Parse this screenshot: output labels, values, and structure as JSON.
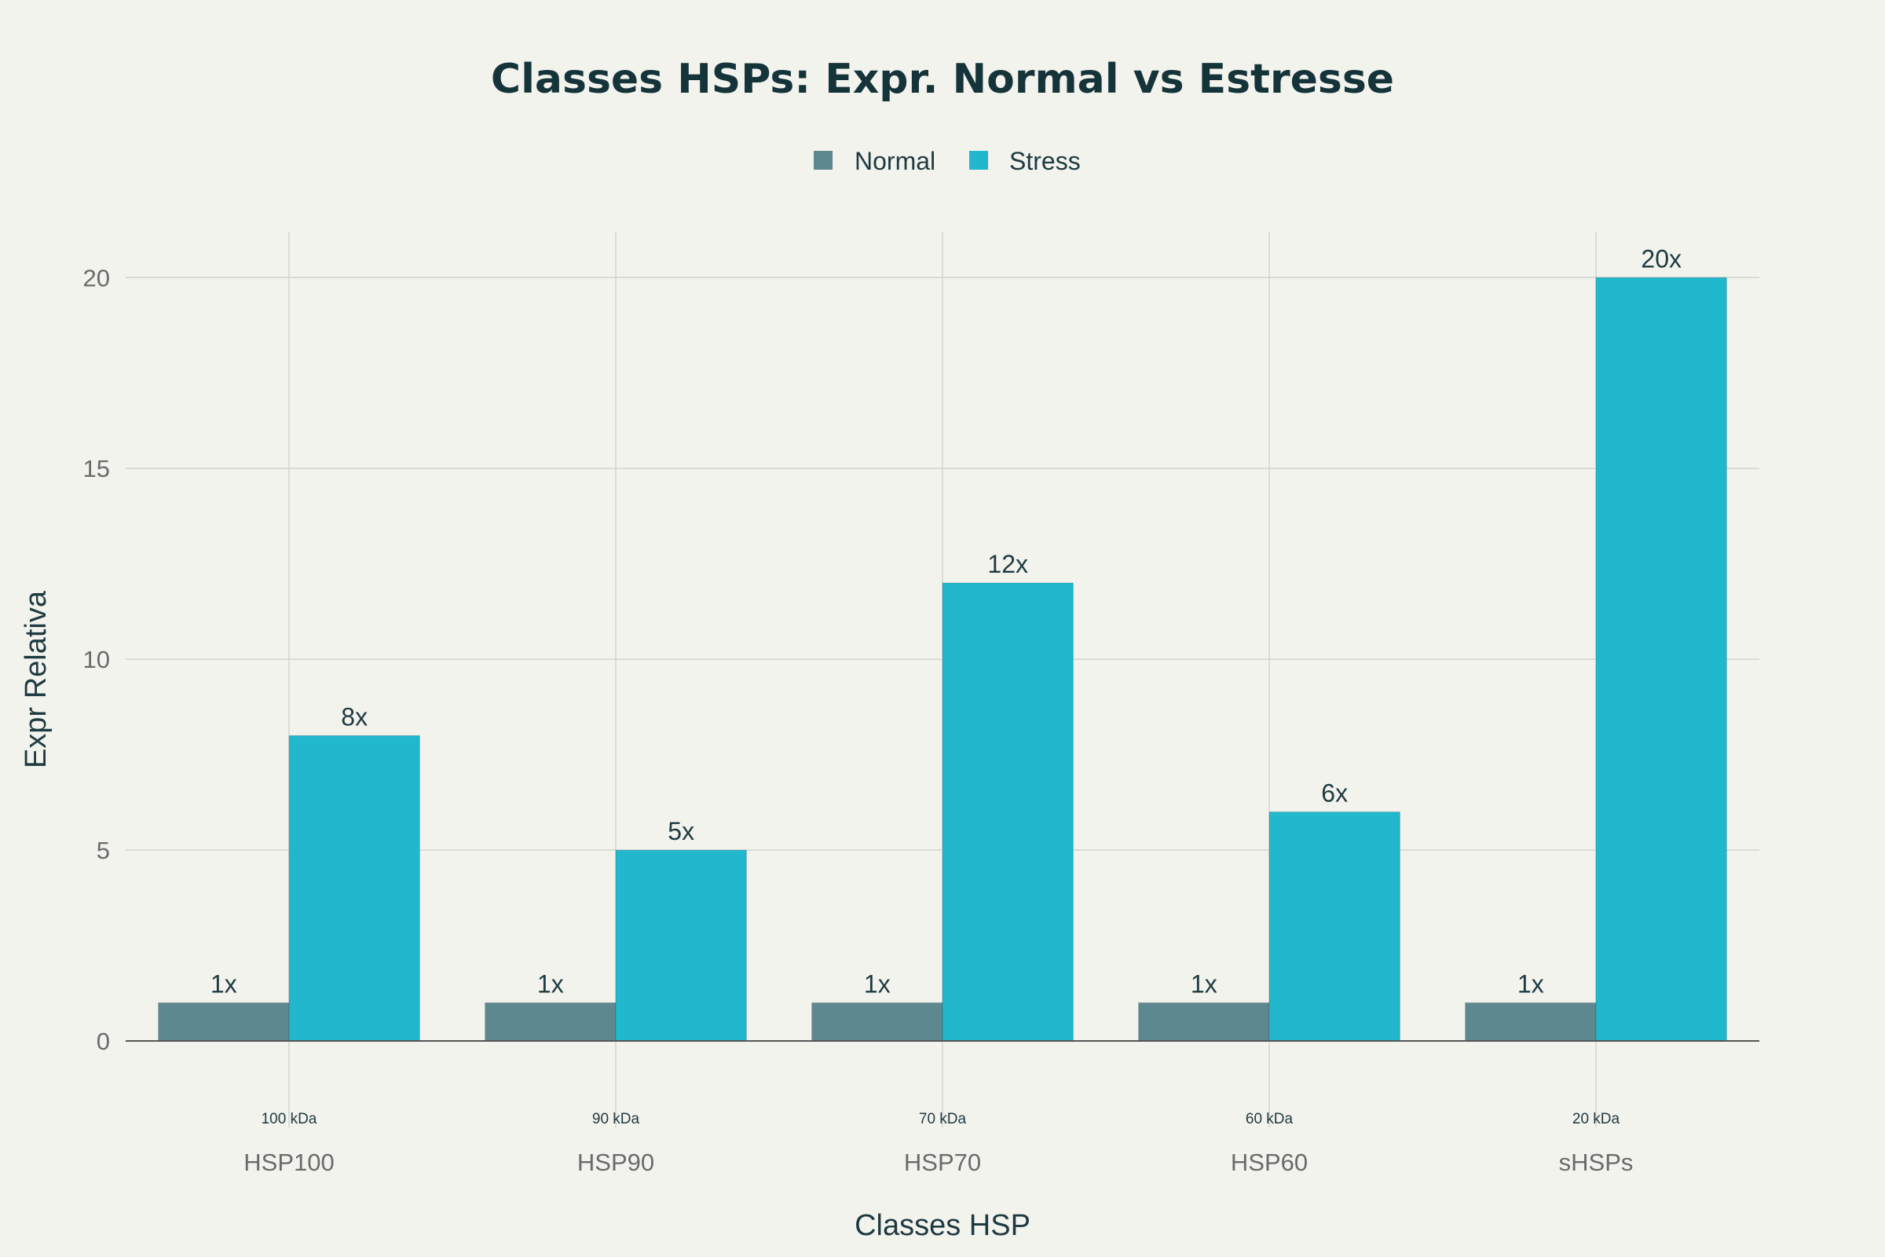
{
  "chart_data": {
    "type": "bar",
    "title": "Classes HSPs: Expr. Normal vs Estresse",
    "xlabel": "Classes HSP",
    "ylabel": "Expr Relativa",
    "categories": [
      "HSP100",
      "HSP90",
      "HSP70",
      "HSP60",
      "sHSPs"
    ],
    "category_sublabels": [
      "100 kDa",
      "90 kDa",
      "70 kDa",
      "60 kDa",
      "20 kDa"
    ],
    "series": [
      {
        "name": "Normal",
        "values": [
          1,
          1,
          1,
          1,
          1
        ],
        "labels": [
          "1x",
          "1x",
          "1x",
          "1x",
          "1x"
        ],
        "color": "#5e8890"
      },
      {
        "name": "Stress",
        "values": [
          8,
          5,
          12,
          6,
          20
        ],
        "labels": [
          "8x",
          "5x",
          "12x",
          "6x",
          "20x"
        ],
        "color": "#21b7cc"
      }
    ],
    "ylim": [
      0,
      21.2
    ],
    "yticks": [
      0,
      5,
      10,
      15,
      20
    ],
    "grid": true,
    "legend_position": "top-center",
    "gridline_color": "#d3d3cf",
    "axis_color": "#555555"
  }
}
